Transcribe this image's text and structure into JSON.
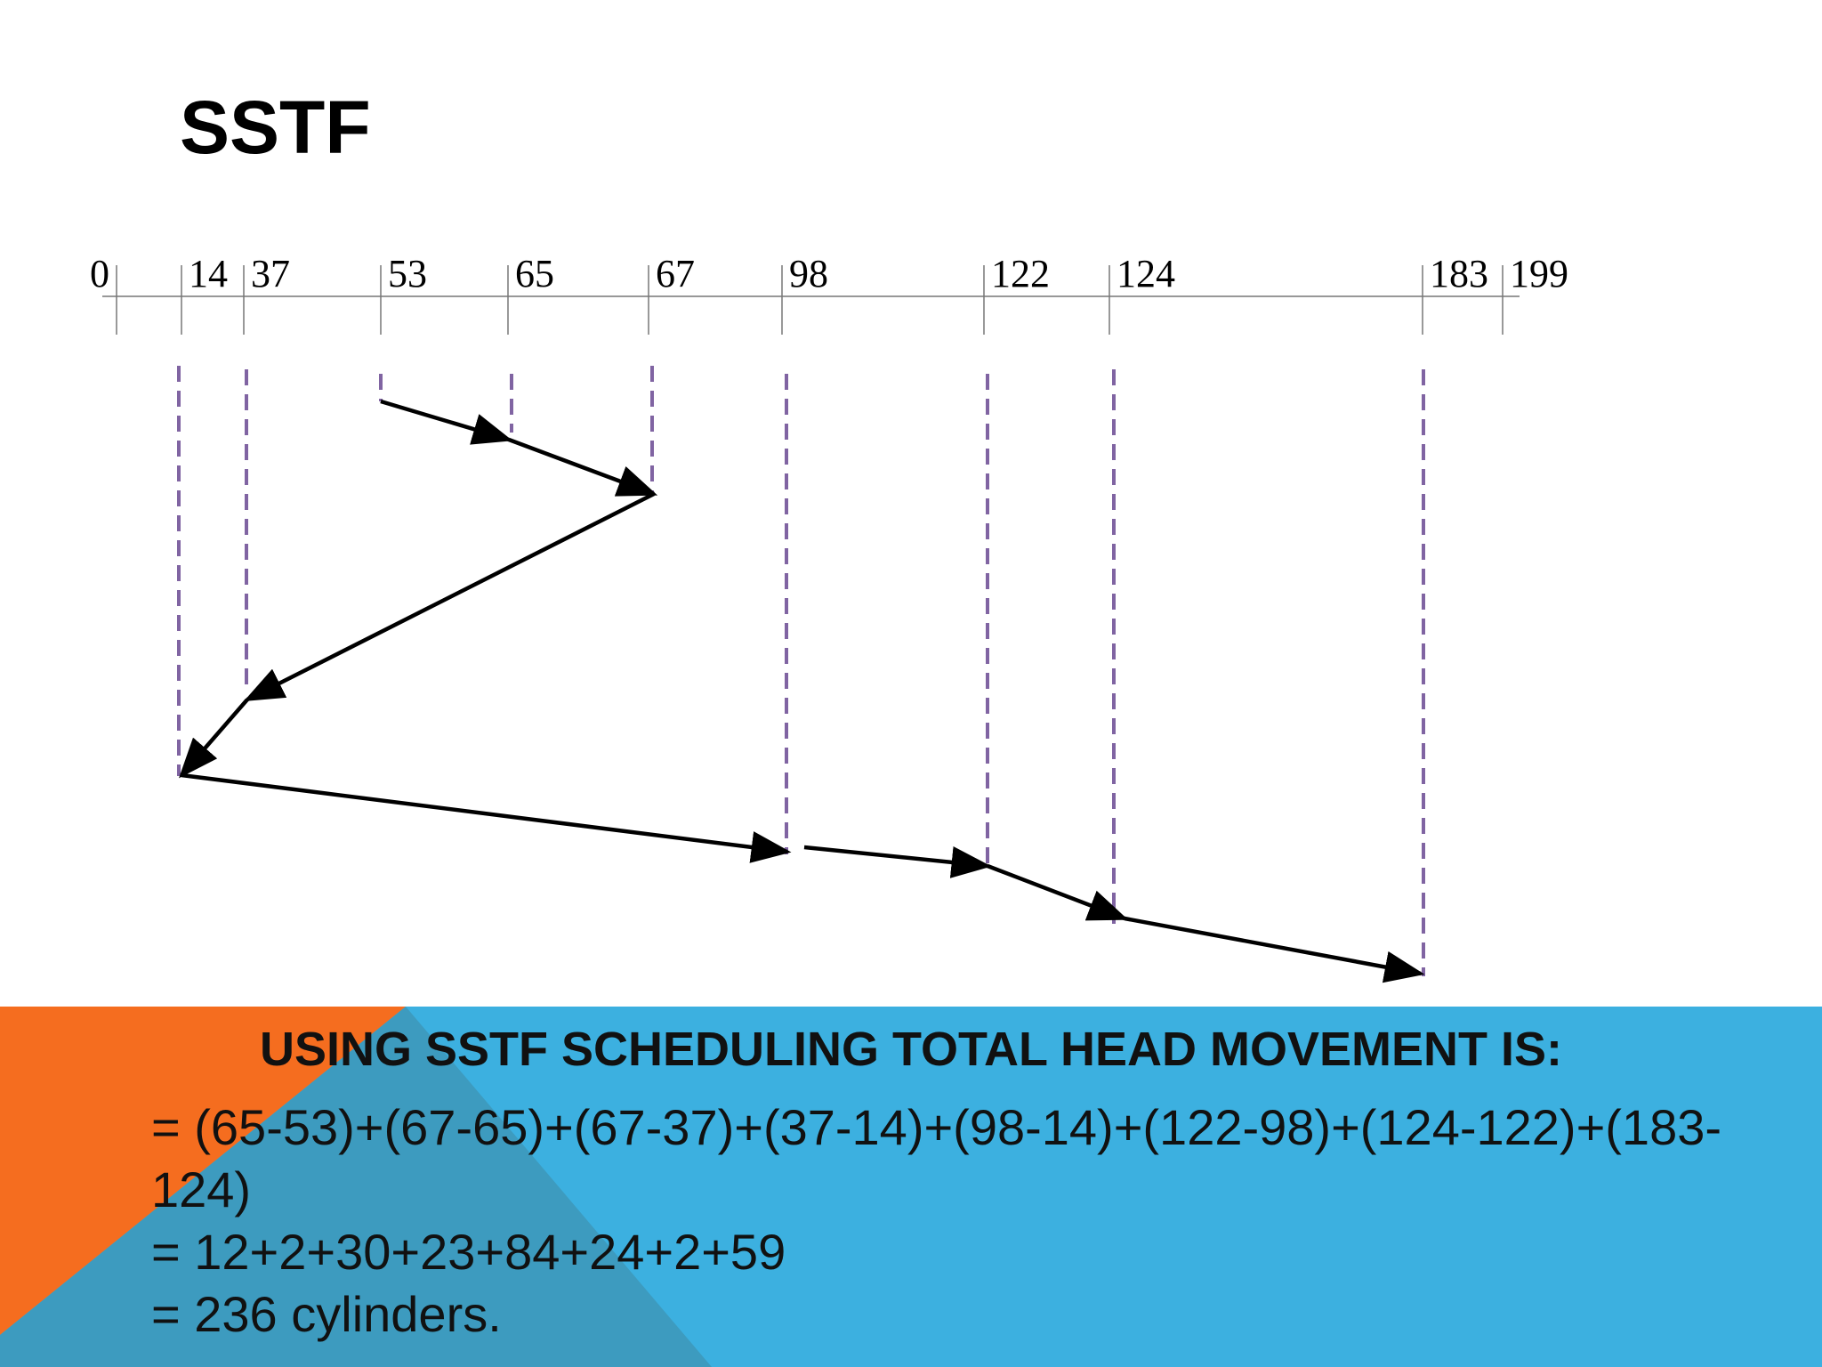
{
  "title": "SSTF",
  "axis": {
    "labels": [
      "0",
      "14",
      "37",
      "53",
      "65",
      "67",
      "98",
      "122",
      "124",
      "183",
      "199"
    ]
  },
  "summary": {
    "heading": "USING SSTF SCHEDULING TOTAL HEAD MOVEMENT IS:",
    "lines": [
      "= (65-53)+(67-65)+(67-37)+(37-14)+(98-14)+(122-98)+(124-122)+(183-124)",
      "= 12+2+30+23+84+24+2+59",
      "= 236 cylinders."
    ]
  }
}
